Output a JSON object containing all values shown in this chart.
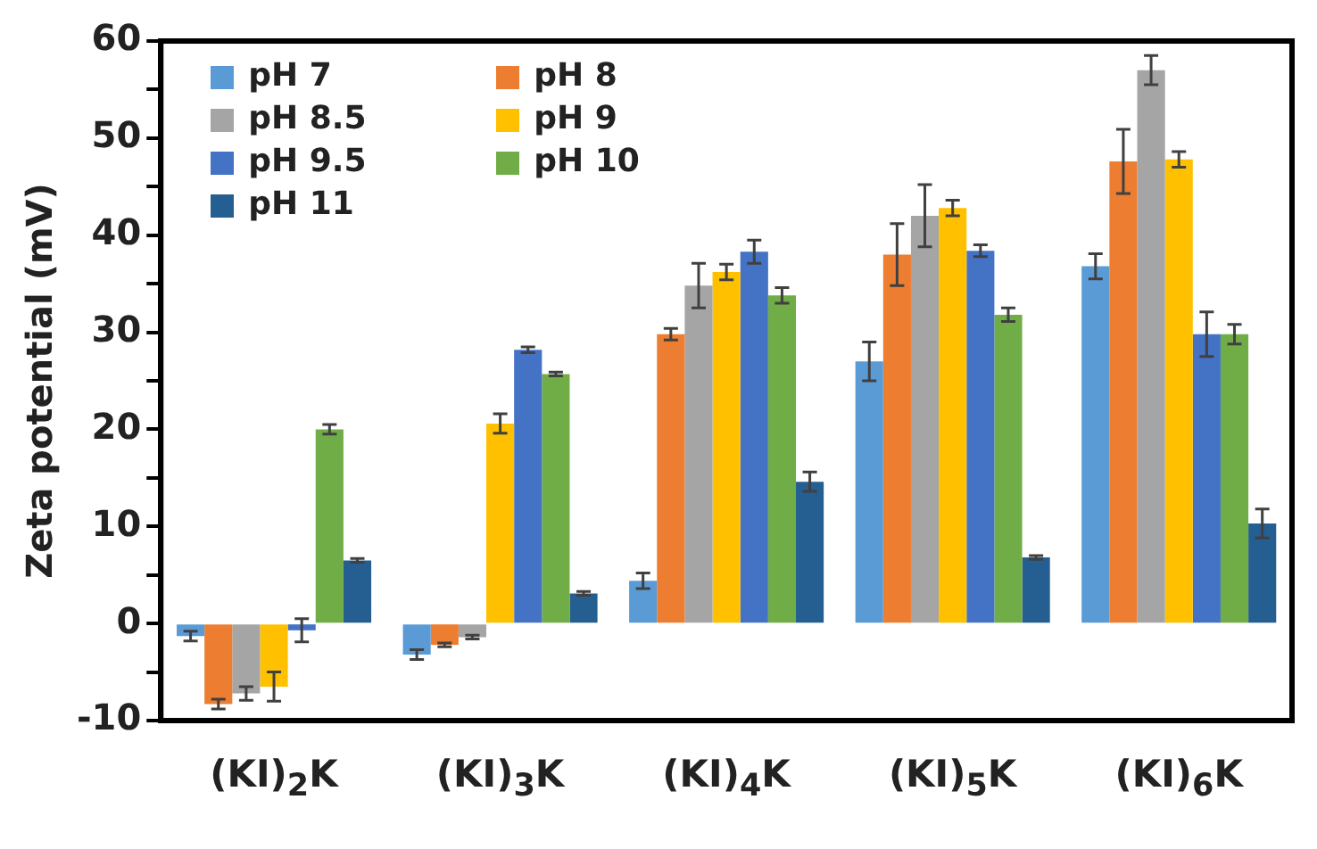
{
  "chart_data": {
    "type": "bar",
    "ylabel": "Zeta potential (mV)",
    "categories": [
      "(KI)$_{2}$K",
      "(KI)$_{3}$K",
      "(KI)$_{4}$K",
      "(KI)$_{5}$K",
      "(KI)$_{6}$K"
    ],
    "series": [
      {
        "name": "pH 7",
        "color": "#5b9bd5",
        "values": [
          -1.3,
          -3.2,
          4.4,
          27,
          36.8
        ],
        "errors": [
          0.5,
          0.5,
          0.8,
          2,
          1.3
        ]
      },
      {
        "name": "pH 8",
        "color": "#ed7d31",
        "values": [
          -8.3,
          -2.2,
          29.8,
          38,
          47.6
        ],
        "errors": [
          0.5,
          0.2,
          0.6,
          3.2,
          3.3
        ]
      },
      {
        "name": "pH 8.5",
        "color": "#a5a5a5",
        "values": [
          -7.2,
          -1.4,
          34.8,
          42,
          57
        ],
        "errors": [
          0.7,
          0.2,
          2.3,
          3.2,
          1.5
        ]
      },
      {
        "name": "pH 9",
        "color": "#ffc000",
        "values": [
          -6.5,
          20.6,
          36.2,
          42.8,
          47.8
        ],
        "errors": [
          1.5,
          1,
          0.8,
          0.8,
          0.8
        ]
      },
      {
        "name": "pH 9.5",
        "color": "#4472c4",
        "values": [
          -0.7,
          28.2,
          38.3,
          38.4,
          29.8
        ],
        "errors": [
          1.2,
          0.3,
          1.2,
          0.6,
          2.3
        ]
      },
      {
        "name": "pH 10",
        "color": "#70ad47",
        "values": [
          20,
          25.7,
          33.8,
          31.8,
          29.8
        ],
        "errors": [
          0.5,
          0.2,
          0.8,
          0.7,
          1
        ]
      },
      {
        "name": "pH 11",
        "color": "#255e91",
        "values": [
          6.5,
          3.1,
          14.6,
          6.8,
          10.3
        ],
        "errors": [
          0.2,
          0.2,
          1,
          0.2,
          1.5
        ]
      }
    ],
    "ylim": [
      -10,
      60
    ],
    "yticks": [
      -10,
      {
        "value": -5,
        "label": null
      },
      0,
      {
        "value": 5,
        "label": null
      },
      10,
      {
        "value": 15,
        "label": null
      },
      20,
      {
        "value": 25,
        "label": null
      },
      30,
      {
        "value": 35,
        "label": null
      },
      40,
      {
        "value": 45,
        "label": null
      },
      50,
      {
        "value": 55,
        "label": null
      },
      60
    ],
    "grid": false,
    "legend": "top left"
  }
}
